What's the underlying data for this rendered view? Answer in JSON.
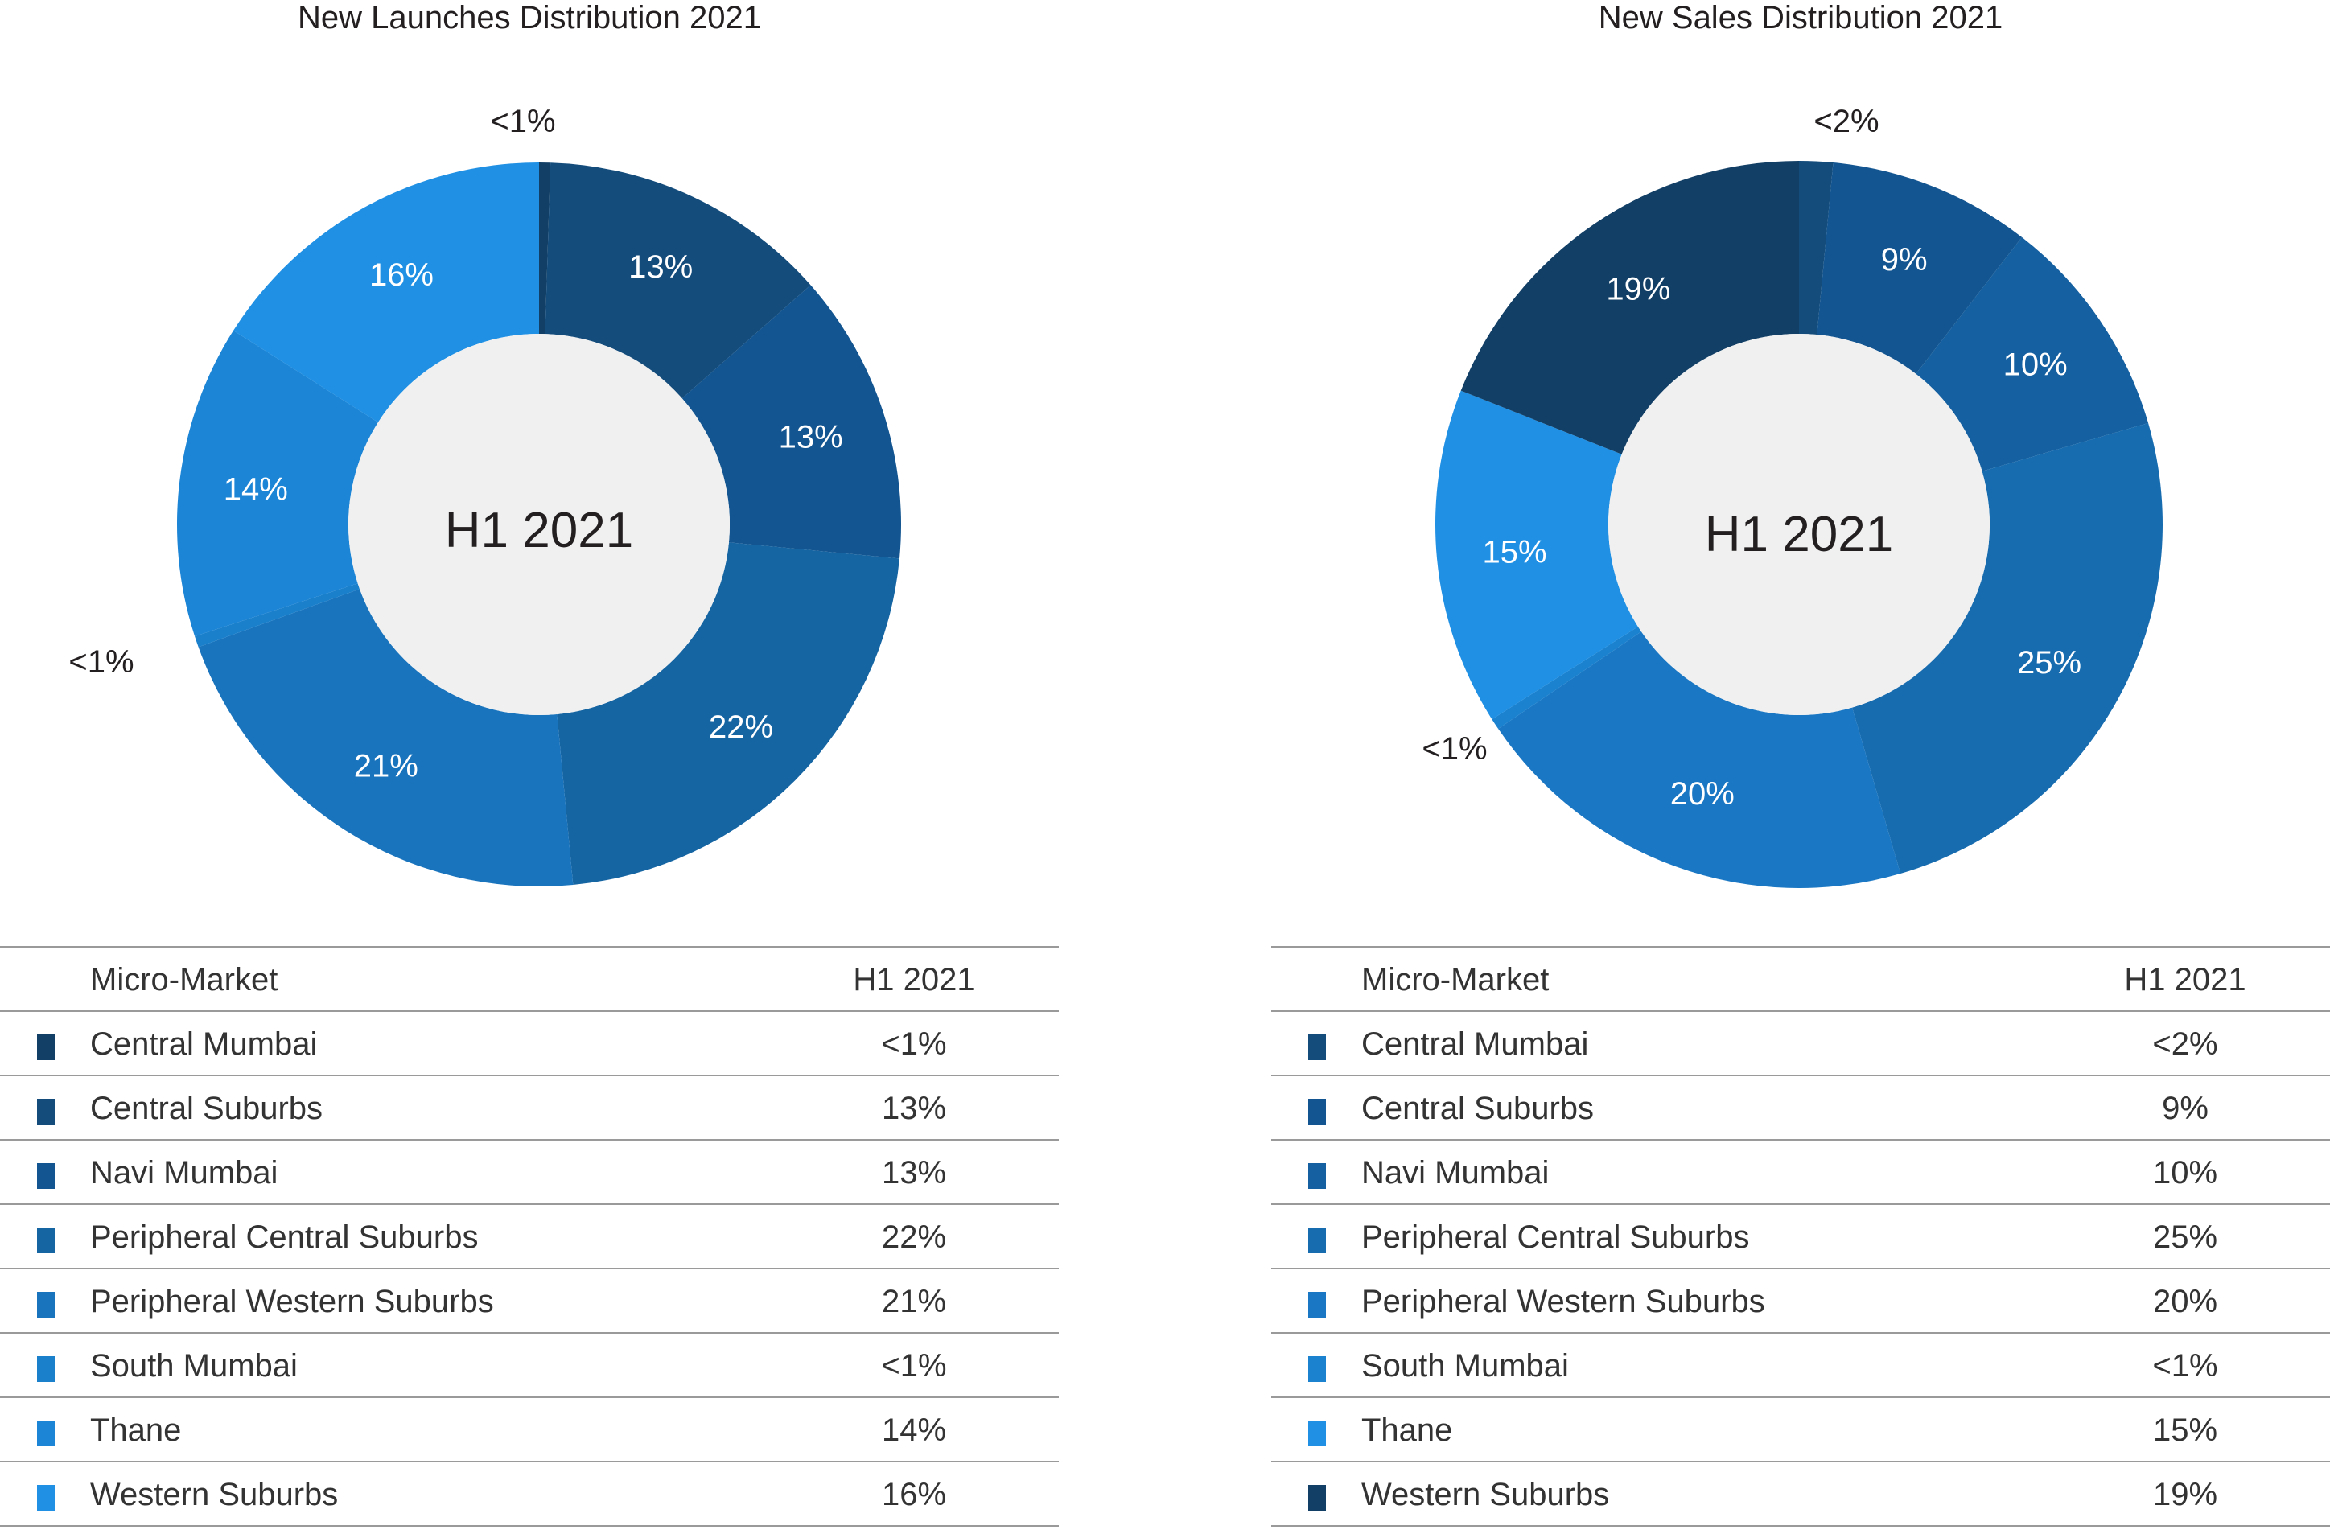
{
  "colors": {
    "hole": "#f0f0f0",
    "slice_label": "#ffffff",
    "outside_label": "#231f20"
  },
  "chart_data": [
    {
      "type": "pie",
      "title": "New Launches Distribution 2021",
      "center_label": "H1 2021",
      "table": {
        "col1": "Micro-Market",
        "col2": "H1 2021"
      },
      "slices": [
        {
          "name": "Central Mumbai",
          "value": 0.5,
          "label": "<1%",
          "color": "#123f66"
        },
        {
          "name": "Central Suburbs",
          "value": 13,
          "label": "13%",
          "color": "#144c7c"
        },
        {
          "name": "Navi Mumbai",
          "value": 13,
          "label": "13%",
          "color": "#135590"
        },
        {
          "name": "Peripheral Central Suburbs",
          "value": 22,
          "label": "22%",
          "color": "#1665a3"
        },
        {
          "name": "Peripheral Western Suburbs",
          "value": 21,
          "label": "21%",
          "color": "#1a74bd"
        },
        {
          "name": "South Mumbai",
          "value": 0.5,
          "label": "<1%",
          "color": "#1b80cc"
        },
        {
          "name": "Thane",
          "value": 14,
          "label": "14%",
          "color": "#1c85d6"
        },
        {
          "name": "Western Suburbs",
          "value": 16,
          "label": "16%",
          "color": "#1f90e4"
        }
      ]
    },
    {
      "type": "pie",
      "title": "New Sales Distribution 2021",
      "center_label": "H1 2021",
      "table": {
        "col1": "Micro-Market",
        "col2": "H1 2021"
      },
      "slices": [
        {
          "name": "Central Mumbai",
          "value": 1.5,
          "label": "<2%",
          "color": "#144c7c"
        },
        {
          "name": "Central Suburbs",
          "value": 9,
          "label": "9%",
          "color": "#135590"
        },
        {
          "name": "Navi Mumbai",
          "value": 10,
          "label": "10%",
          "color": "#1560a0"
        },
        {
          "name": "Peripheral Central Suburbs",
          "value": 25,
          "label": "25%",
          "color": "#176cb0"
        },
        {
          "name": "Peripheral Western Suburbs",
          "value": 20,
          "label": "20%",
          "color": "#1a77c3"
        },
        {
          "name": "South Mumbai",
          "value": 0.5,
          "label": "<1%",
          "color": "#1b82d0"
        },
        {
          "name": "Thane",
          "value": 15,
          "label": "15%",
          "color": "#1f90e4"
        },
        {
          "name": "Western Suburbs",
          "value": 19,
          "label": "19%",
          "color": "#123f66"
        }
      ]
    }
  ]
}
